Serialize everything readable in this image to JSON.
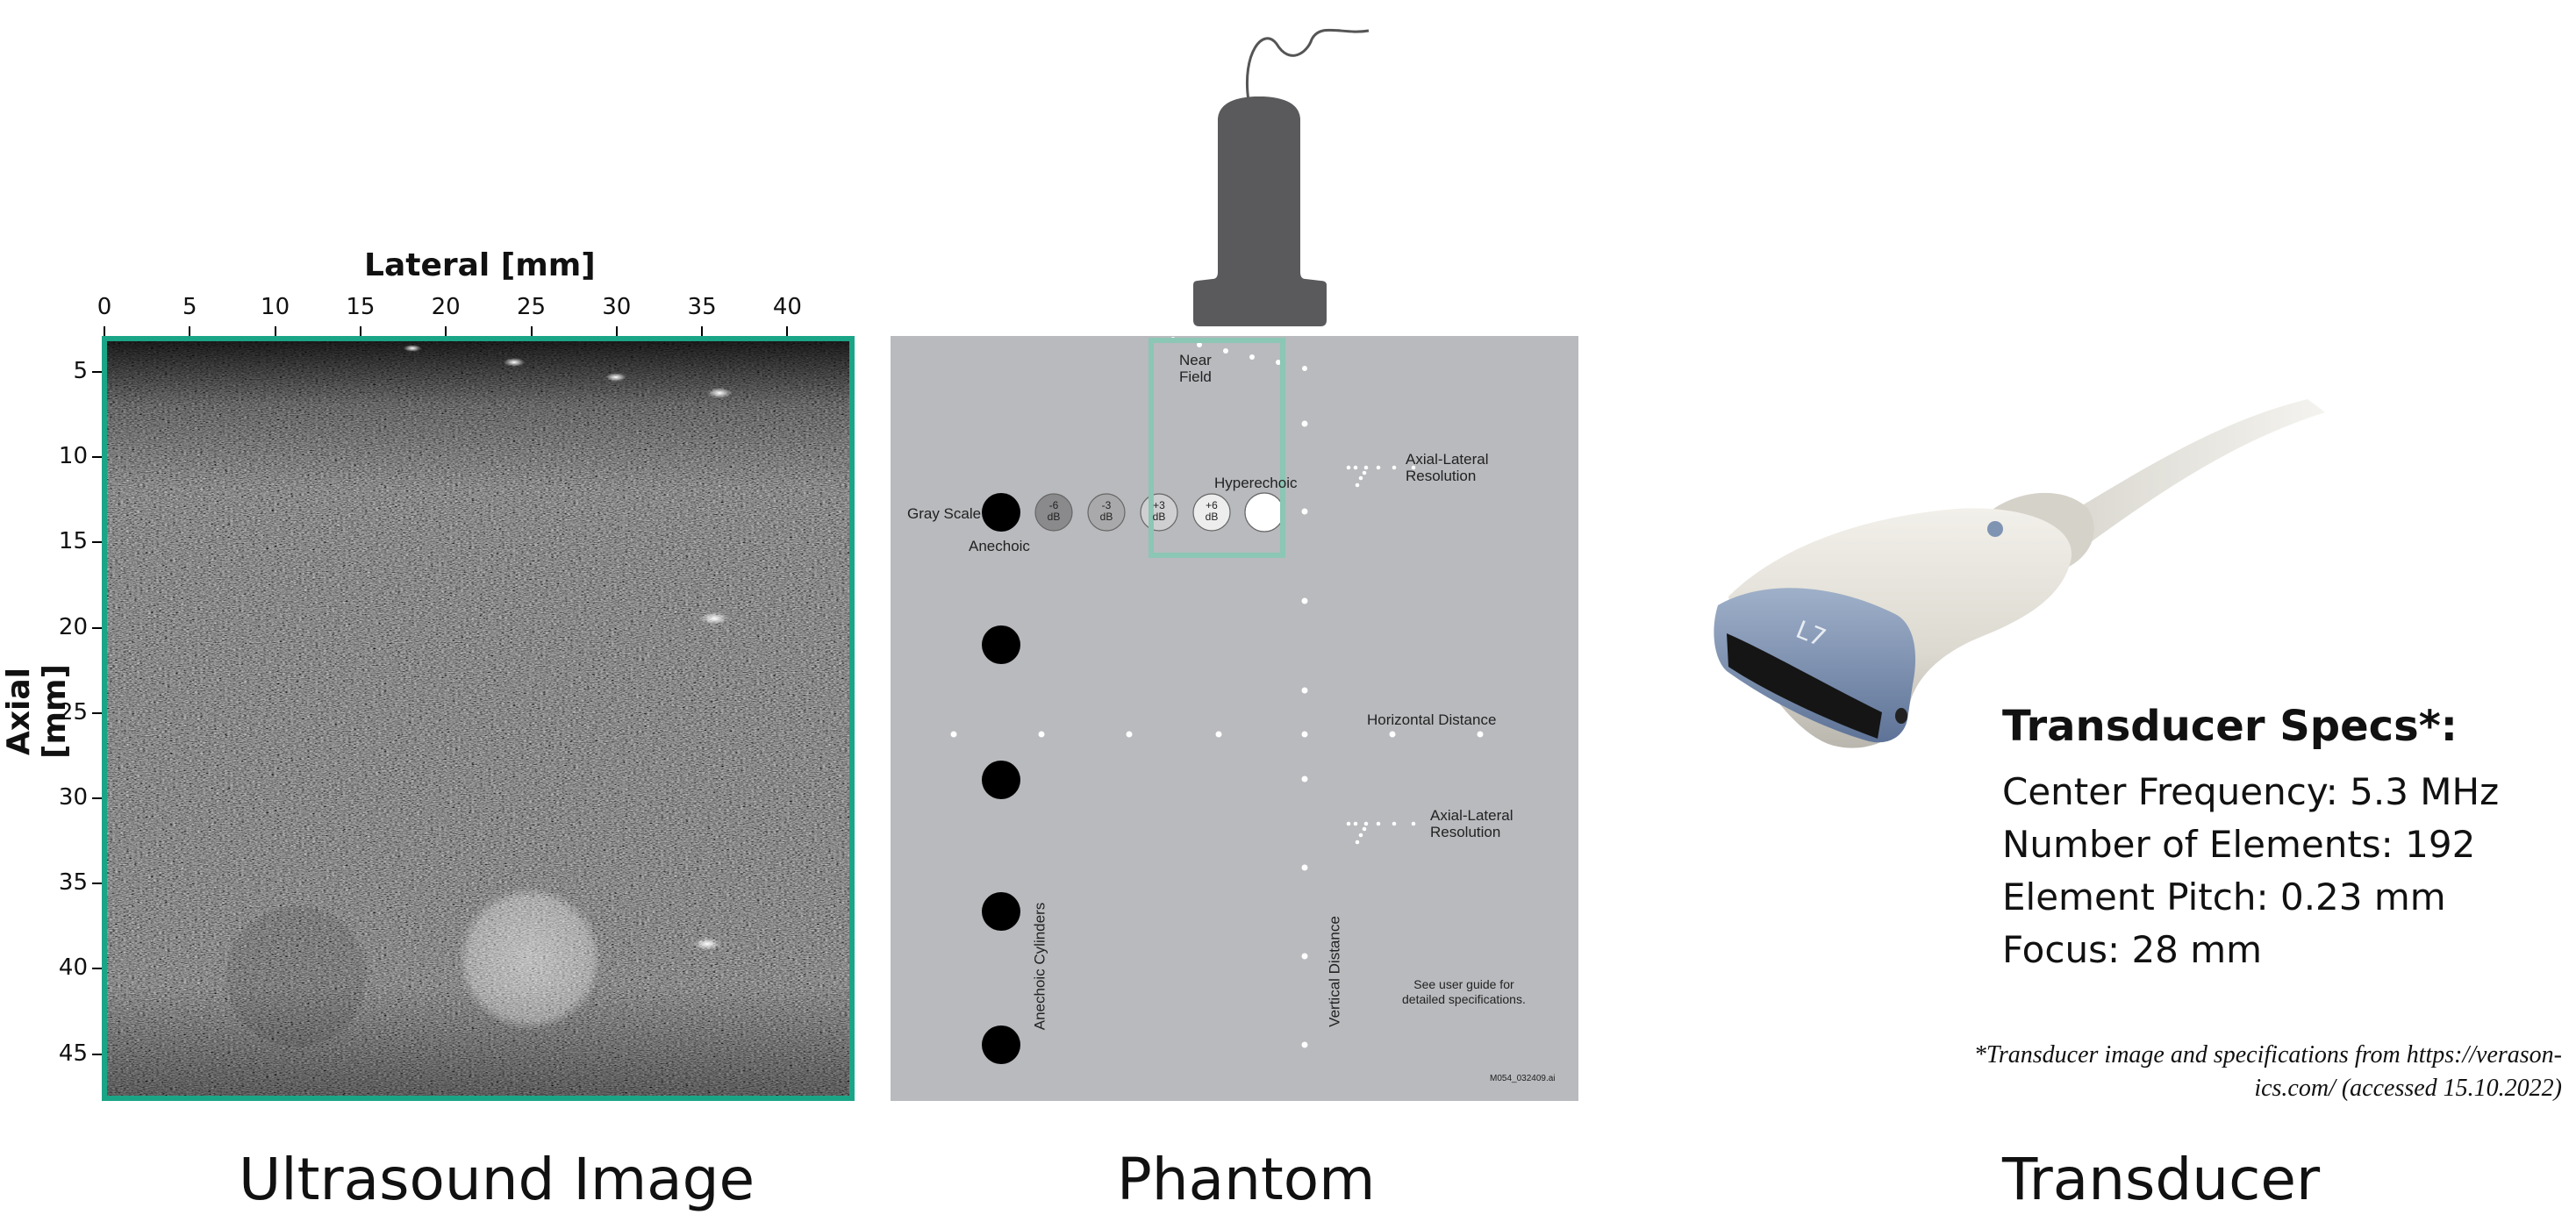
{
  "colors": {
    "frame": "#1aa587",
    "phantom_bg": "#b8babd",
    "transducer_gray": "#5a5a5c",
    "probe_blue": "#7f93b3"
  },
  "ultrasound": {
    "caption": "Ultrasound Image",
    "xlabel": "Lateral [mm]",
    "ylabel": "Axial [mm]",
    "xticks": [
      "0",
      "5",
      "10",
      "15",
      "20",
      "25",
      "30",
      "35",
      "40"
    ],
    "yticks": [
      "5",
      "10",
      "15",
      "20",
      "25",
      "30",
      "35",
      "40",
      "45"
    ]
  },
  "phantom": {
    "caption": "Phantom",
    "labels": {
      "near_field": "Near\nField",
      "gray_scale": "Gray Scale",
      "anechoic": "Anechoic",
      "hyperechoic": "Hyperechoic",
      "axial_lateral_1": "Axial-Lateral\nResolution",
      "horizontal_distance": "Horizontal Distance",
      "axial_lateral_2": "Axial-Lateral\nResolution",
      "anechoic_cylinders": "Anechoic Cylinders",
      "vertical_distance": "Vertical Distance",
      "user_guide": "See user guide for\ndetailed specifications.",
      "model_code": "M054_032409.ai"
    },
    "contrast_targets": [
      "-6\ndB",
      "-3\ndB",
      "+3\ndB",
      "+6\ndB"
    ]
  },
  "transducer": {
    "caption": "Transducer",
    "probe_label": "L7",
    "specs_title": "Transducer Specs*:",
    "specs": [
      "Center Frequency: 5.3 MHz",
      "Number of Elements: 192",
      "Element Pitch: 0.23 mm",
      "Focus: 28 mm"
    ],
    "footnote": "*Transducer image and specifications from https://verason-\nics.com/ (accessed 15.10.2022)"
  }
}
